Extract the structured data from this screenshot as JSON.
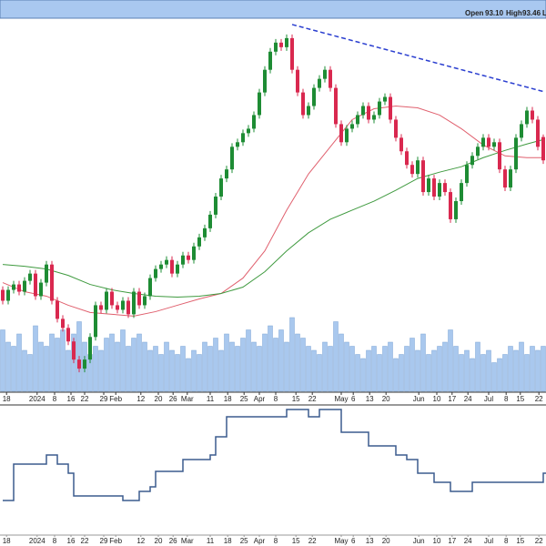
{
  "header": {
    "items": [
      "Open",
      "93.10",
      "High",
      "93.46",
      "L"
    ]
  },
  "chart_data": [
    {
      "type": "candlestick",
      "xlim": [
        -0.5,
        99.5
      ],
      "ylim": [
        58.0,
        109.25
      ],
      "xticks": [
        {
          "value": 0.7,
          "label": "18"
        },
        {
          "value": 6.3,
          "label": "2024"
        },
        {
          "value": 9.5,
          "label": "8"
        },
        {
          "value": 12.5,
          "label": "16"
        },
        {
          "value": 15,
          "label": "22"
        },
        {
          "value": 18.5,
          "label": "29"
        },
        {
          "value": 20.7,
          "label": "Feb"
        },
        {
          "value": 25.3,
          "label": "12"
        },
        {
          "value": 28.5,
          "label": "20"
        },
        {
          "value": 31.2,
          "label": "26"
        },
        {
          "value": 33.8,
          "label": "Mar"
        },
        {
          "value": 38,
          "label": "11"
        },
        {
          "value": 41.2,
          "label": "18"
        },
        {
          "value": 44.2,
          "label": "25"
        },
        {
          "value": 47,
          "label": "Apr"
        },
        {
          "value": 50,
          "label": "8"
        },
        {
          "value": 53.7,
          "label": "15"
        },
        {
          "value": 56.7,
          "label": "22"
        },
        {
          "value": 62,
          "label": "May"
        },
        {
          "value": 64.2,
          "label": "6"
        },
        {
          "value": 67.2,
          "label": "13"
        },
        {
          "value": 70.2,
          "label": "20"
        },
        {
          "value": 76.2,
          "label": "Jun"
        },
        {
          "value": 79.5,
          "label": "10"
        },
        {
          "value": 82.3,
          "label": "17"
        },
        {
          "value": 85.2,
          "label": "24"
        },
        {
          "value": 89,
          "label": "Jul"
        },
        {
          "value": 92.2,
          "label": "8"
        },
        {
          "value": 94.8,
          "label": "15"
        },
        {
          "value": 98.2,
          "label": "22"
        }
      ],
      "up_color": "#1e8c34",
      "down_color": "#d9284f",
      "open": [
        72,
        70.5,
        72,
        72.75,
        71.75,
        73.25,
        74.25,
        71.13,
        73,
        75.5,
        70.5,
        68,
        66.75,
        64.88,
        62.38,
        61.13,
        62.38,
        65.5,
        69.88,
        69.25,
        71.75,
        69.88,
        69.25,
        70.5,
        68.63,
        71.75,
        69.88,
        71.13,
        73.63,
        74.88,
        75.5,
        76.13,
        74.25,
        75.5,
        76.75,
        76.13,
        78,
        79.25,
        80.5,
        82.38,
        84.88,
        87.38,
        88.63,
        91.75,
        92.38,
        93.63,
        94.25,
        96.13,
        99.25,
        102.38,
        104.88,
        106.13,
        105.5,
        106.75,
        102.38,
        99.25,
        96.13,
        97.38,
        99.88,
        101.13,
        102.38,
        99.88,
        94.88,
        92.38,
        94.25,
        94.88,
        96.13,
        97.38,
        95.5,
        96.13,
        98,
        98.63,
        95.5,
        93,
        91.13,
        89.25,
        88,
        89.88,
        85.5,
        87.38,
        84.88,
        86.75,
        85.5,
        81.75,
        84.25,
        86.75,
        89.25,
        90.5,
        91.75,
        93,
        91.75,
        92.38,
        88.63,
        86.13,
        88.63,
        93,
        94.88,
        96.75,
        95.5,
        93.1
      ],
      "high": [
        72.5,
        72.5,
        73.25,
        73.25,
        73.75,
        74.75,
        74.75,
        73.5,
        76,
        76,
        71,
        68.5,
        67.25,
        65.38,
        62.88,
        62.88,
        66,
        70.38,
        70.38,
        72.25,
        72.25,
        70.38,
        71,
        71,
        72.25,
        72.25,
        71.63,
        74.13,
        75.38,
        76,
        76.63,
        76.63,
        76,
        77.25,
        77.25,
        78.5,
        79.75,
        81,
        82.88,
        85.38,
        87.88,
        89.13,
        92.25,
        92.88,
        94.13,
        94.75,
        96.63,
        99.75,
        102.88,
        105.38,
        106.63,
        106.63,
        107.25,
        107.25,
        102.88,
        99.75,
        97.88,
        100.38,
        101.63,
        102.88,
        102.88,
        100.38,
        95.38,
        94.75,
        95.38,
        96.63,
        97.88,
        97.88,
        96.63,
        98.5,
        99.13,
        99.13,
        96,
        93.5,
        91.63,
        89.75,
        90.38,
        90.38,
        87.88,
        87.88,
        87.25,
        87.25,
        86,
        84.75,
        87.25,
        89.75,
        91,
        92.25,
        93.5,
        93.5,
        92.88,
        92.88,
        89.13,
        89.13,
        93.5,
        95.38,
        97.25,
        97.25,
        96,
        93.46
      ],
      "low": [
        70,
        70,
        71.5,
        71.25,
        71.25,
        72.75,
        70.63,
        70.63,
        72.5,
        70,
        67.5,
        66.25,
        64.38,
        61.88,
        60.63,
        60.63,
        61.88,
        65,
        68.75,
        68.75,
        69.38,
        68.75,
        68.75,
        68.13,
        68.13,
        69.38,
        69.38,
        70.63,
        73.13,
        74.38,
        75,
        73.75,
        73.75,
        75,
        75.63,
        75.63,
        77.5,
        78.75,
        80,
        81.88,
        84.38,
        86.88,
        88.13,
        91.25,
        91.88,
        93.13,
        93.75,
        95.63,
        98.75,
        101.88,
        104.38,
        105,
        105,
        101.88,
        98.75,
        95.63,
        95.63,
        96.88,
        99.38,
        100.63,
        99.38,
        94.38,
        91.88,
        91.88,
        93.75,
        94.38,
        95.63,
        95,
        95,
        95.63,
        97.5,
        95,
        92.5,
        90.63,
        88.75,
        87.5,
        87.5,
        85,
        85,
        84.38,
        84.38,
        85,
        81.25,
        81.25,
        83.75,
        86.25,
        88.75,
        90,
        91.25,
        91.25,
        91.25,
        88.13,
        85.63,
        85.63,
        88.13,
        92.5,
        94.38,
        95,
        91.25,
        89.38
      ],
      "close": [
        70.5,
        72,
        72.75,
        71.75,
        73.25,
        74.25,
        71.13,
        73,
        75.5,
        70.5,
        68,
        66.75,
        64.88,
        62.38,
        61.13,
        62.38,
        65.5,
        69.88,
        69.25,
        71.75,
        69.88,
        69.25,
        70.5,
        68.63,
        71.75,
        69.88,
        71.13,
        73.63,
        74.88,
        75.5,
        76.13,
        74.25,
        75.5,
        76.75,
        76.13,
        78,
        79.25,
        80.5,
        82.38,
        84.88,
        87.38,
        88.63,
        91.75,
        92.38,
        93.63,
        94.25,
        96.13,
        99.25,
        102.38,
        104.88,
        106.13,
        105.5,
        106.75,
        102.38,
        99.25,
        96.13,
        97.38,
        99.88,
        101.13,
        102.38,
        99.88,
        94.88,
        92.38,
        94.25,
        94.88,
        96.13,
        97.38,
        95.5,
        96.13,
        98,
        98.63,
        95.5,
        93,
        91.13,
        89.25,
        88,
        89.88,
        85.5,
        87.38,
        84.88,
        86.75,
        85.5,
        81.75,
        84.25,
        86.75,
        89.25,
        90.5,
        91.75,
        93,
        91.75,
        92.38,
        88.63,
        86.13,
        88.63,
        93,
        94.88,
        96.75,
        95.5,
        91.75,
        89.88
      ],
      "volume": [
        75,
        60,
        55,
        70,
        50,
        45,
        80,
        60,
        55,
        70,
        65,
        75,
        50,
        70,
        85,
        60,
        45,
        55,
        50,
        65,
        70,
        60,
        75,
        55,
        65,
        70,
        60,
        50,
        55,
        45,
        60,
        50,
        45,
        55,
        40,
        50,
        45,
        60,
        55,
        65,
        50,
        70,
        60,
        55,
        65,
        75,
        60,
        55,
        70,
        80,
        65,
        75,
        60,
        90,
        70,
        65,
        55,
        50,
        45,
        60,
        55,
        85,
        70,
        60,
        55,
        45,
        40,
        50,
        55,
        45,
        55,
        60,
        40,
        45,
        55,
        65,
        50,
        70,
        45,
        50,
        55,
        60,
        75,
        55,
        45,
        50,
        40,
        60,
        45,
        50,
        35,
        40,
        45,
        55,
        50,
        60,
        45,
        55,
        50,
        55
      ],
      "volume_lim": [
        0,
        100
      ],
      "volume_color": "#a9c8ee",
      "moving_averages": [
        {
          "color": "#e0606e",
          "x": [
            0,
            4,
            8,
            12,
            16,
            20,
            24,
            28,
            32,
            36,
            40,
            44,
            48,
            52,
            56,
            60,
            64,
            68,
            72,
            76,
            80,
            84,
            88,
            92,
            96,
            99
          ],
          "values": [
            73,
            71.75,
            71.13,
            69.88,
            68.88,
            68.63,
            68.38,
            69,
            69.88,
            70.75,
            71.5,
            73.63,
            77.38,
            83,
            88,
            91.75,
            95.5,
            97,
            97.38,
            97.13,
            96.13,
            94.25,
            92,
            90.5,
            90.25,
            90.25
          ]
        },
        {
          "color": "#3f9a3f",
          "x": [
            0,
            4,
            8,
            12,
            16,
            20,
            24,
            28,
            32,
            36,
            40,
            44,
            48,
            52,
            56,
            60,
            64,
            68,
            72,
            76,
            80,
            84,
            88,
            92,
            96,
            99
          ],
          "values": [
            75.5,
            75.25,
            74.88,
            74,
            72.75,
            72,
            71.5,
            71.13,
            71,
            71.13,
            71.5,
            72.38,
            74.5,
            77.38,
            79.88,
            81.75,
            83,
            84.25,
            85.75,
            87.38,
            88.25,
            89,
            90.25,
            91.25,
            92.13,
            92.75
          ]
        }
      ],
      "trendline": {
        "color": "#2b3fd0",
        "x": [
          53,
          99
        ],
        "values": [
          108.63,
          99.38
        ]
      }
    },
    {
      "type": "step",
      "xlim": [
        -0.5,
        99.5
      ],
      "ylim": [
        0,
        145
      ],
      "color": "#3b5b8e",
      "x": [
        0,
        2,
        8,
        10,
        12,
        13,
        22,
        25,
        27,
        28,
        33,
        38,
        39,
        41,
        52,
        56,
        58,
        62,
        67,
        72,
        74,
        76,
        79,
        82,
        86,
        99
      ],
      "values": [
        40,
        80,
        90,
        80,
        70,
        45,
        40,
        50,
        55,
        72,
        85,
        90,
        110,
        132,
        140,
        132,
        140,
        115,
        100,
        90,
        85,
        70,
        60,
        50,
        60,
        70
      ]
    }
  ]
}
